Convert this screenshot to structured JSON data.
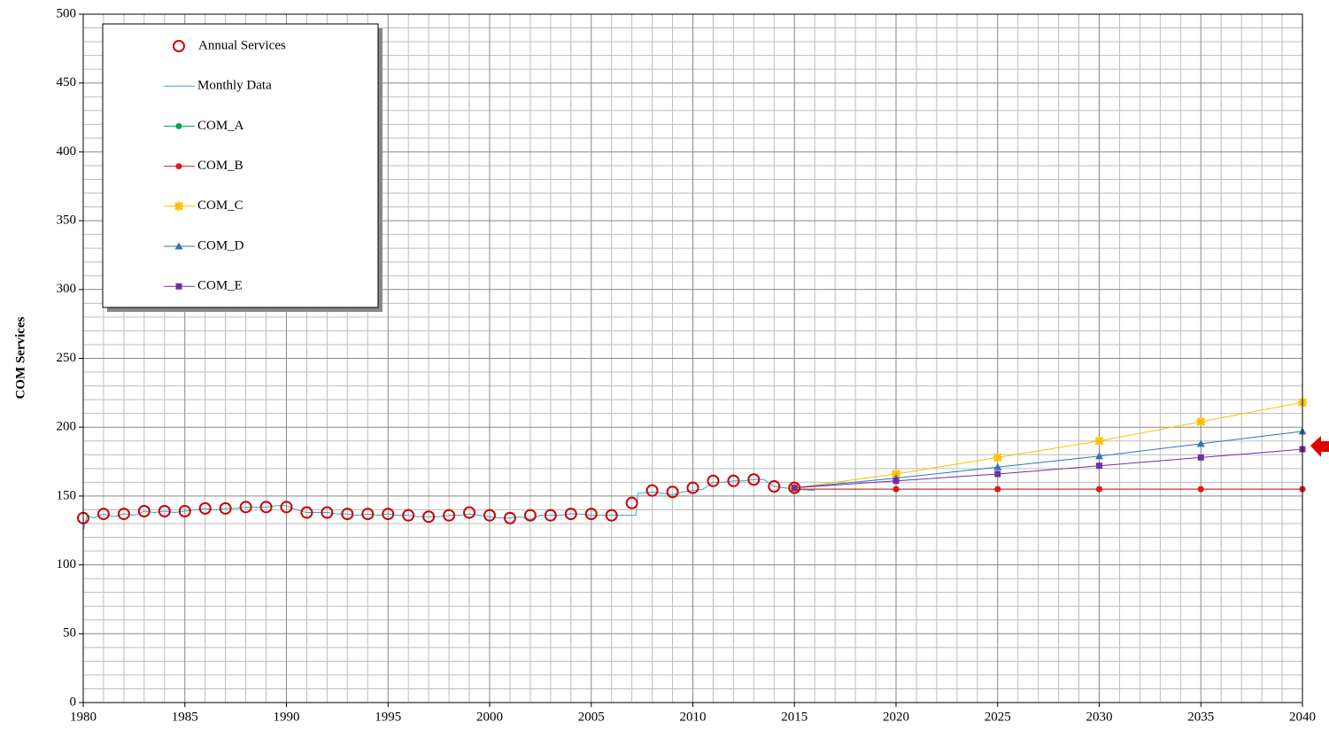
{
  "chart_data": {
    "type": "line",
    "ylabel": "COM Services",
    "xlim": [
      1980,
      2040
    ],
    "xticks": [
      1980,
      1985,
      1990,
      1995,
      2000,
      2005,
      2010,
      2015,
      2020,
      2025,
      2030,
      2035,
      2040
    ],
    "ylim": [
      0,
      500
    ],
    "yticks": [
      0,
      50,
      100,
      150,
      200,
      250,
      300,
      350,
      400,
      450,
      500
    ],
    "grid": true,
    "legend": "upper left",
    "series": [
      {
        "name": "Annual Services",
        "color": "#d00000",
        "marker": "open-circle",
        "line": false,
        "x": [
          1980,
          1981,
          1982,
          1983,
          1984,
          1985,
          1986,
          1987,
          1988,
          1989,
          1990,
          1991,
          1992,
          1993,
          1994,
          1995,
          1996,
          1997,
          1998,
          1999,
          2000,
          2001,
          2002,
          2003,
          2004,
          2005,
          2006,
          2007,
          2008,
          2009,
          2010,
          2011,
          2012,
          2013,
          2014,
          2015
        ],
        "values": [
          134,
          137,
          137,
          139,
          139,
          139,
          141,
          141,
          142,
          142,
          142,
          138,
          138,
          137,
          137,
          137,
          136,
          135,
          136,
          138,
          136,
          134,
          136,
          136,
          137,
          137,
          136,
          145,
          154,
          153,
          156,
          161,
          161,
          162,
          157,
          156
        ]
      },
      {
        "name": "Monthly Data",
        "color": "#2aa7d6",
        "marker": "none",
        "line": true,
        "x": [
          1980,
          1980.2,
          1980.5,
          1981,
          1981.5,
          1982,
          1982.5,
          1983,
          1983.5,
          1984,
          1984.5,
          1985,
          1985.5,
          1986,
          1986.5,
          1987,
          1987.5,
          1988,
          1988.5,
          1989,
          1989.5,
          1990,
          1990.5,
          1991,
          1991.5,
          1992,
          1992.5,
          1993,
          1993.5,
          1994,
          1994.5,
          1995,
          1995.5,
          1996,
          1996.5,
          1997,
          1997.5,
          1998,
          1998.5,
          1999,
          1999.5,
          2000,
          2000.5,
          2001,
          2001.5,
          2002,
          2002.5,
          2003,
          2003.5,
          2004,
          2004.5,
          2005,
          2005.5,
          2006,
          2006.5,
          2007.2,
          2007.3,
          2008,
          2008.5,
          2009,
          2009.5,
          2010,
          2010.5,
          2011,
          2011.5,
          2012,
          2012.5,
          2013,
          2013.5,
          2014,
          2014.5,
          2015,
          2016
        ],
        "values": [
          125,
          136,
          134,
          137,
          135,
          137,
          136,
          139,
          138,
          139,
          138,
          139,
          140,
          141,
          140,
          141,
          141,
          142,
          142,
          142,
          143,
          143,
          140,
          138,
          138,
          138,
          137,
          137,
          136,
          137,
          136,
          137,
          136,
          136,
          135,
          135,
          135,
          136,
          136,
          137,
          136,
          135,
          134,
          134,
          135,
          133,
          136,
          136,
          136,
          137,
          137,
          136,
          136,
          136,
          136,
          136,
          152,
          153,
          152,
          151,
          153,
          154,
          155,
          160,
          160,
          161,
          161,
          162,
          162,
          157,
          156,
          155,
          154
        ]
      },
      {
        "name": "COM_A",
        "color": "#00a550",
        "marker": "circle",
        "line": true,
        "x": [
          2015,
          2020,
          2025,
          2030,
          2035,
          2040
        ],
        "values": [
          155,
          155,
          155,
          155,
          155,
          155
        ]
      },
      {
        "name": "COM_B",
        "color": "#e8161b",
        "marker": "circle",
        "line": true,
        "x": [
          2015,
          2020,
          2025,
          2030,
          2035,
          2040
        ],
        "values": [
          155,
          155,
          155,
          155,
          155,
          155
        ]
      },
      {
        "name": "COM_C",
        "color": "#ffc000",
        "marker": "star",
        "line": true,
        "x": [
          2015,
          2020,
          2025,
          2030,
          2035,
          2040
        ],
        "values": [
          156,
          166,
          178,
          190,
          204,
          218
        ]
      },
      {
        "name": "COM_D",
        "color": "#2e75b6",
        "marker": "triangle",
        "line": true,
        "x": [
          2015,
          2020,
          2025,
          2030,
          2035,
          2040
        ],
        "values": [
          156,
          163,
          171,
          179,
          188,
          197
        ]
      },
      {
        "name": "COM_E",
        "color": "#7030a0",
        "marker": "square",
        "line": true,
        "x": [
          2015,
          2020,
          2025,
          2030,
          2035,
          2040
        ],
        "values": [
          156,
          161,
          166,
          172,
          178,
          184
        ]
      }
    ]
  }
}
